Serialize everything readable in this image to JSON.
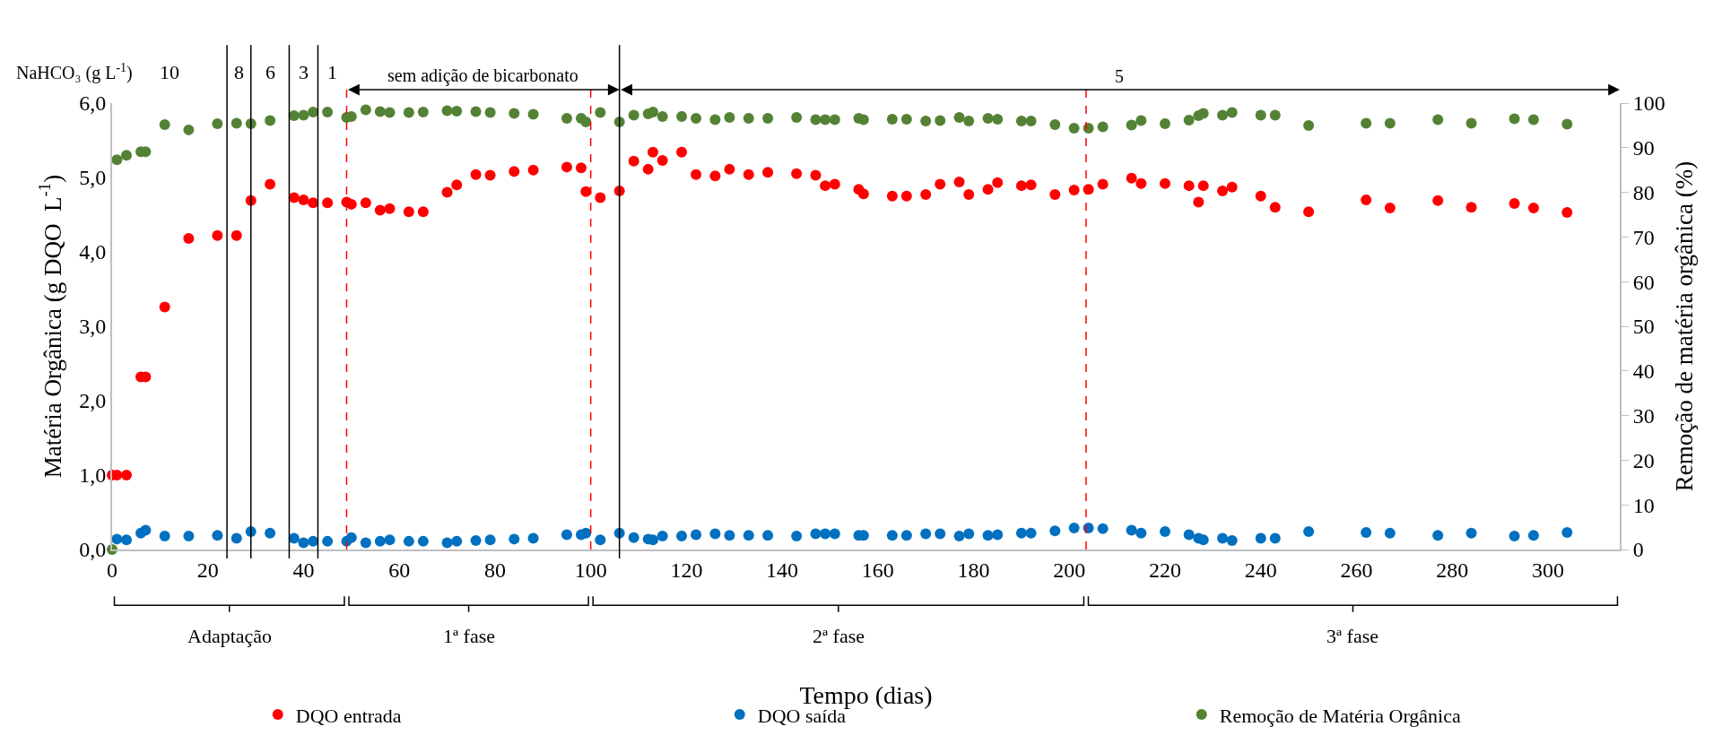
{
  "chart_data": {
    "type": "scatter",
    "xlabel": "Tempo (dias)",
    "ylabel": "Matéria Orgânica (g DQO  L$^{-1}$)",
    "y2label": "Remoção de matéria orgânica (%)",
    "annotations": [
      "NaHCO₃ (g L$^{-1}$)",
      "10",
      "8",
      "6",
      "3",
      "1",
      "sem adição de bicarbonato",
      "5",
      "Adaptação",
      "1ª fase",
      "2ª fase",
      "3ª fase"
    ],
    "xlim": [
      0,
      315
    ],
    "xticks": [
      0,
      20,
      40,
      60,
      80,
      100,
      120,
      140,
      160,
      180,
      200,
      220,
      240,
      260,
      280,
      300
    ],
    "ylim": [
      0,
      6
    ],
    "yticks": [
      {
        "value": 0,
        "label": "0,0"
      },
      {
        "value": 1,
        "label": "1,0"
      },
      {
        "value": 2,
        "label": "2,0"
      },
      {
        "value": 3,
        "label": "3,0"
      },
      {
        "value": 4,
        "label": "4,0"
      },
      {
        "value": 5,
        "label": "5,0"
      },
      {
        "value": 6,
        "label": "6,0"
      }
    ],
    "y2lim": [
      0,
      100
    ],
    "y2ticks": [
      0,
      10,
      20,
      30,
      40,
      50,
      60,
      70,
      80,
      90,
      100
    ],
    "grid": false,
    "legend": "bottom",
    "marker": "circle",
    "series": [
      {
        "name": "DQO entrada",
        "color": "#ff0000",
        "x": [
          0,
          1,
          3,
          6,
          7,
          11,
          16,
          22,
          26,
          29,
          33,
          38,
          40,
          42,
          45,
          49,
          50,
          53,
          56,
          58,
          62,
          65,
          70,
          72,
          76,
          79,
          84,
          88,
          95,
          98,
          99,
          102,
          106,
          109,
          112,
          113,
          115,
          119,
          122,
          126,
          129,
          133,
          137,
          143,
          147,
          149,
          151,
          156,
          157,
          163,
          166,
          170,
          173,
          177,
          179,
          183,
          185,
          190,
          192,
          197,
          201,
          204,
          207,
          213,
          215,
          220,
          225,
          227,
          228,
          232,
          234,
          240,
          243,
          250,
          262,
          267,
          277,
          284,
          293,
          297,
          304
        ],
        "values": [
          1.0,
          1.0,
          1.0,
          2.32,
          2.32,
          3.26,
          4.18,
          4.22,
          4.22,
          4.69,
          4.91,
          4.73,
          4.7,
          4.66,
          4.66,
          4.67,
          4.64,
          4.66,
          4.56,
          4.58,
          4.54,
          4.54,
          4.8,
          4.9,
          5.04,
          5.03,
          5.08,
          5.1,
          5.14,
          5.13,
          4.81,
          4.73,
          4.82,
          5.22,
          5.11,
          5.34,
          5.23,
          5.34,
          5.04,
          5.02,
          5.11,
          5.04,
          5.07,
          5.05,
          5.03,
          4.89,
          4.91,
          4.84,
          4.78,
          4.75,
          4.75,
          4.77,
          4.91,
          4.94,
          4.77,
          4.84,
          4.93,
          4.89,
          4.9,
          4.77,
          4.83,
          4.84,
          4.91,
          4.99,
          4.92,
          4.92,
          4.89,
          4.67,
          4.89,
          4.82,
          4.87,
          4.75,
          4.6,
          4.54,
          4.7,
          4.59,
          4.69,
          4.6,
          4.65,
          4.59,
          4.53
        ]
      },
      {
        "name": "DQO saída",
        "color": "#0070c0",
        "x": [
          1,
          3,
          6,
          7,
          11,
          16,
          22,
          26,
          29,
          33,
          38,
          40,
          42,
          45,
          49,
          50,
          53,
          56,
          58,
          62,
          65,
          70,
          72,
          76,
          79,
          84,
          88,
          95,
          98,
          99,
          102,
          106,
          109,
          112,
          113,
          115,
          119,
          122,
          126,
          129,
          133,
          137,
          143,
          147,
          149,
          151,
          156,
          157,
          163,
          166,
          170,
          173,
          177,
          179,
          183,
          185,
          190,
          192,
          197,
          201,
          204,
          207,
          213,
          215,
          220,
          225,
          227,
          228,
          232,
          234,
          240,
          243,
          250,
          262,
          267,
          277,
          284,
          293,
          297,
          304
        ],
        "values": [
          0.14,
          0.13,
          0.22,
          0.26,
          0.18,
          0.18,
          0.19,
          0.15,
          0.24,
          0.22,
          0.15,
          0.09,
          0.11,
          0.11,
          0.11,
          0.16,
          0.09,
          0.11,
          0.13,
          0.11,
          0.11,
          0.09,
          0.11,
          0.12,
          0.13,
          0.14,
          0.15,
          0.2,
          0.2,
          0.22,
          0.13,
          0.22,
          0.16,
          0.14,
          0.13,
          0.18,
          0.18,
          0.2,
          0.21,
          0.19,
          0.19,
          0.19,
          0.18,
          0.21,
          0.21,
          0.21,
          0.19,
          0.19,
          0.19,
          0.19,
          0.21,
          0.21,
          0.18,
          0.21,
          0.19,
          0.2,
          0.22,
          0.22,
          0.25,
          0.29,
          0.29,
          0.28,
          0.26,
          0.22,
          0.24,
          0.2,
          0.15,
          0.13,
          0.15,
          0.12,
          0.15,
          0.15,
          0.24,
          0.23,
          0.22,
          0.19,
          0.22,
          0.18,
          0.19,
          0.23
        ]
      },
      {
        "name": "Remoção de Matéria Orgânica",
        "color": "#548235",
        "axis": "y2",
        "x": [
          0,
          1,
          3,
          6,
          7,
          11,
          16,
          22,
          26,
          29,
          33,
          38,
          40,
          42,
          45,
          49,
          50,
          53,
          56,
          58,
          62,
          65,
          70,
          72,
          76,
          79,
          84,
          88,
          95,
          98,
          99,
          102,
          106,
          109,
          112,
          113,
          115,
          119,
          122,
          126,
          129,
          133,
          137,
          143,
          147,
          149,
          151,
          156,
          157,
          163,
          166,
          170,
          173,
          177,
          179,
          183,
          185,
          190,
          192,
          197,
          201,
          204,
          207,
          213,
          215,
          220,
          225,
          227,
          228,
          232,
          234,
          240,
          243,
          250,
          262,
          267,
          277,
          284,
          293,
          297,
          304
        ],
        "values": [
          0,
          87.3,
          88.3,
          89.1,
          89.1,
          95.2,
          94.0,
          95.4,
          95.5,
          95.4,
          96.1,
          97.2,
          97.3,
          98.0,
          98.0,
          96.8,
          97.0,
          98.5,
          98.1,
          97.9,
          97.9,
          98.0,
          98.3,
          98.2,
          98.1,
          97.9,
          97.7,
          97.5,
          96.6,
          96.6,
          95.8,
          97.9,
          95.8,
          97.3,
          97.6,
          98.0,
          97.0,
          97.0,
          96.6,
          96.3,
          96.8,
          96.6,
          96.6,
          96.8,
          96.3,
          96.3,
          96.3,
          96.6,
          96.3,
          96.4,
          96.4,
          96.0,
          96.1,
          96.8,
          96.0,
          96.6,
          96.4,
          96.0,
          96.0,
          95.2,
          94.4,
          94.4,
          94.7,
          95.1,
          96.1,
          95.4,
          96.2,
          97.2,
          97.7,
          97.3,
          97.9,
          97.3,
          97.3,
          95.0,
          95.5,
          95.5,
          96.3,
          95.5,
          96.5,
          96.3,
          95.3
        ]
      }
    ],
    "ref_lines": [
      {
        "axis": "x",
        "value": 24,
        "color": "#000000"
      },
      {
        "axis": "x",
        "value": 29,
        "color": "#000000"
      },
      {
        "axis": "x",
        "value": 37,
        "color": "#000000"
      },
      {
        "axis": "x",
        "value": 43,
        "color": "#000000"
      },
      {
        "axis": "x",
        "value": 106,
        "color": "#000000"
      },
      {
        "axis": "x",
        "value": 49,
        "color": "#ff0000",
        "line_style": "dashed"
      },
      {
        "axis": "x",
        "value": 100,
        "color": "#ff0000",
        "line_style": "dashed"
      },
      {
        "axis": "x",
        "value": 203.5,
        "color": "#ff0000",
        "line_style": "dashed"
      }
    ]
  }
}
